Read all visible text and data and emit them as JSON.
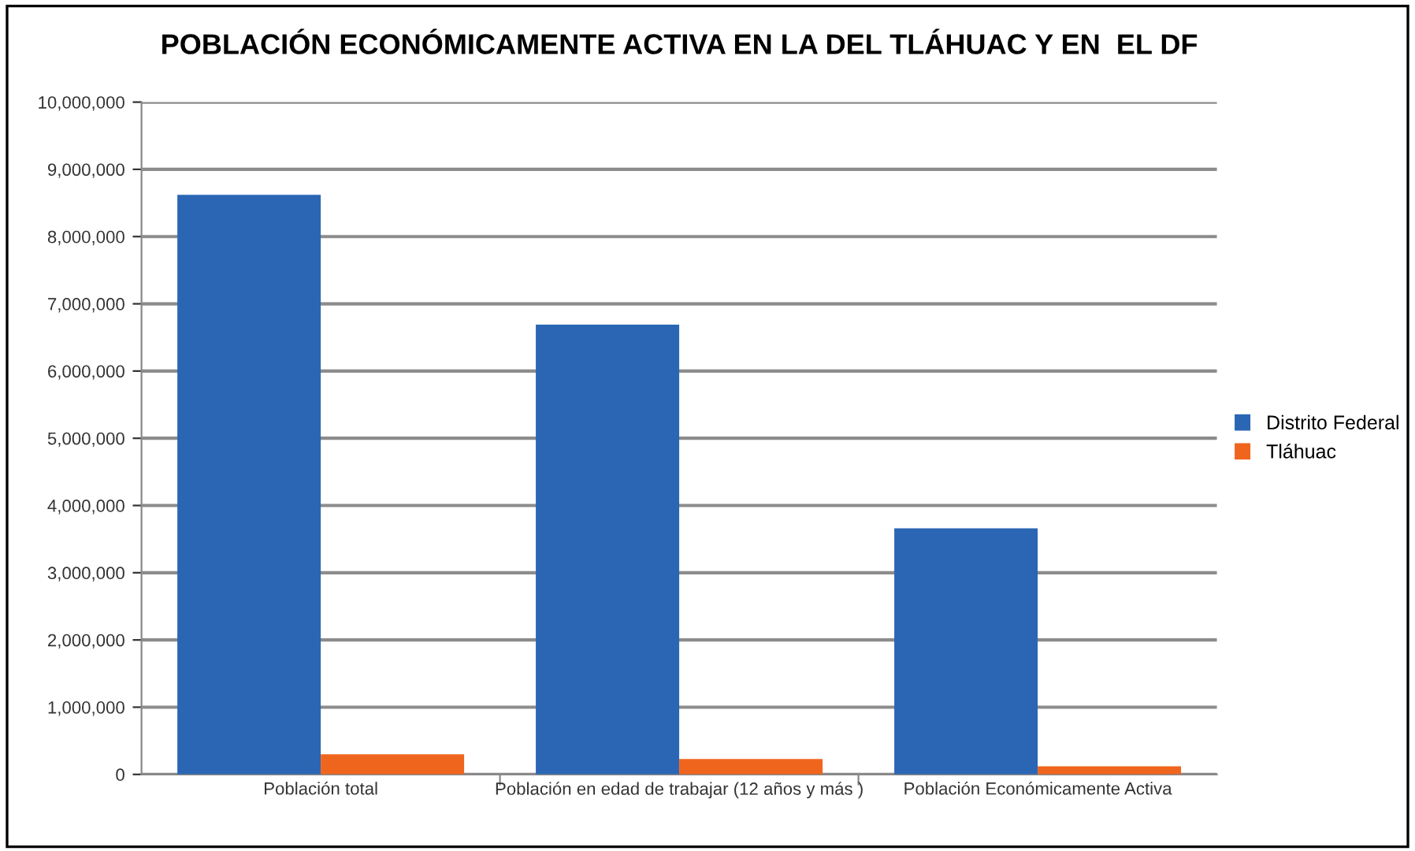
{
  "chart_data": {
    "type": "bar",
    "title": "POBLACIÓN ECONÓMICAMENTE ACTIVA EN LA DEL TLÁHUAC Y EN  EL DF",
    "categories": [
      "Población total",
      "Población en edad de trabajar (12 años y más )",
      "Población Económicamente Activa"
    ],
    "series": [
      {
        "name": "Distrito Federal",
        "color": "#2a66b4",
        "values": [
          8620000,
          6690000,
          3660000
        ]
      },
      {
        "name": "Tláhuac",
        "color": "#f0651e",
        "values": [
          300000,
          230000,
          120000
        ]
      }
    ],
    "ylim": [
      0,
      10000000
    ],
    "yticks": [
      {
        "value": 0,
        "label": "0"
      },
      {
        "value": 1000000,
        "label": "1,000,000"
      },
      {
        "value": 2000000,
        "label": "2,000,000"
      },
      {
        "value": 3000000,
        "label": "3,000,000"
      },
      {
        "value": 4000000,
        "label": "4,000,000"
      },
      {
        "value": 5000000,
        "label": "5,000,000"
      },
      {
        "value": 6000000,
        "label": "6,000,000"
      },
      {
        "value": 7000000,
        "label": "7,000,000"
      },
      {
        "value": 8000000,
        "label": "8,000,000"
      },
      {
        "value": 9000000,
        "label": "9,000,000"
      },
      {
        "value": 10000000,
        "label": "10,000,000"
      }
    ],
    "grid": "y",
    "legend": "right"
  }
}
